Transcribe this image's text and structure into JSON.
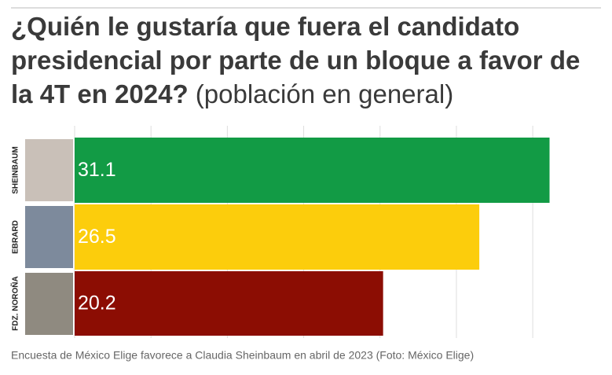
{
  "chart_data": {
    "type": "barh",
    "title": "¿Quién le gustaría que fuera el candidato presidencial por parte de un bloque a favor de la 4T en 2024?",
    "subtitle": "(población en general)",
    "categories": [
      "SHEINBAUM",
      "EBRARD",
      "FDZ. NOROÑA"
    ],
    "values": [
      31.1,
      26.5,
      20.2
    ],
    "colors": [
      "#129b45",
      "#fccd0c",
      "#8c0d03"
    ],
    "xlim": [
      0,
      32
    ],
    "xticks": [
      0,
      5,
      10,
      15,
      20,
      25,
      30
    ],
    "grid": true,
    "caption": "Encuesta de México Elige favorece a Claudia Sheinbaum en abril de 2023 (Foto: México Elige)"
  }
}
